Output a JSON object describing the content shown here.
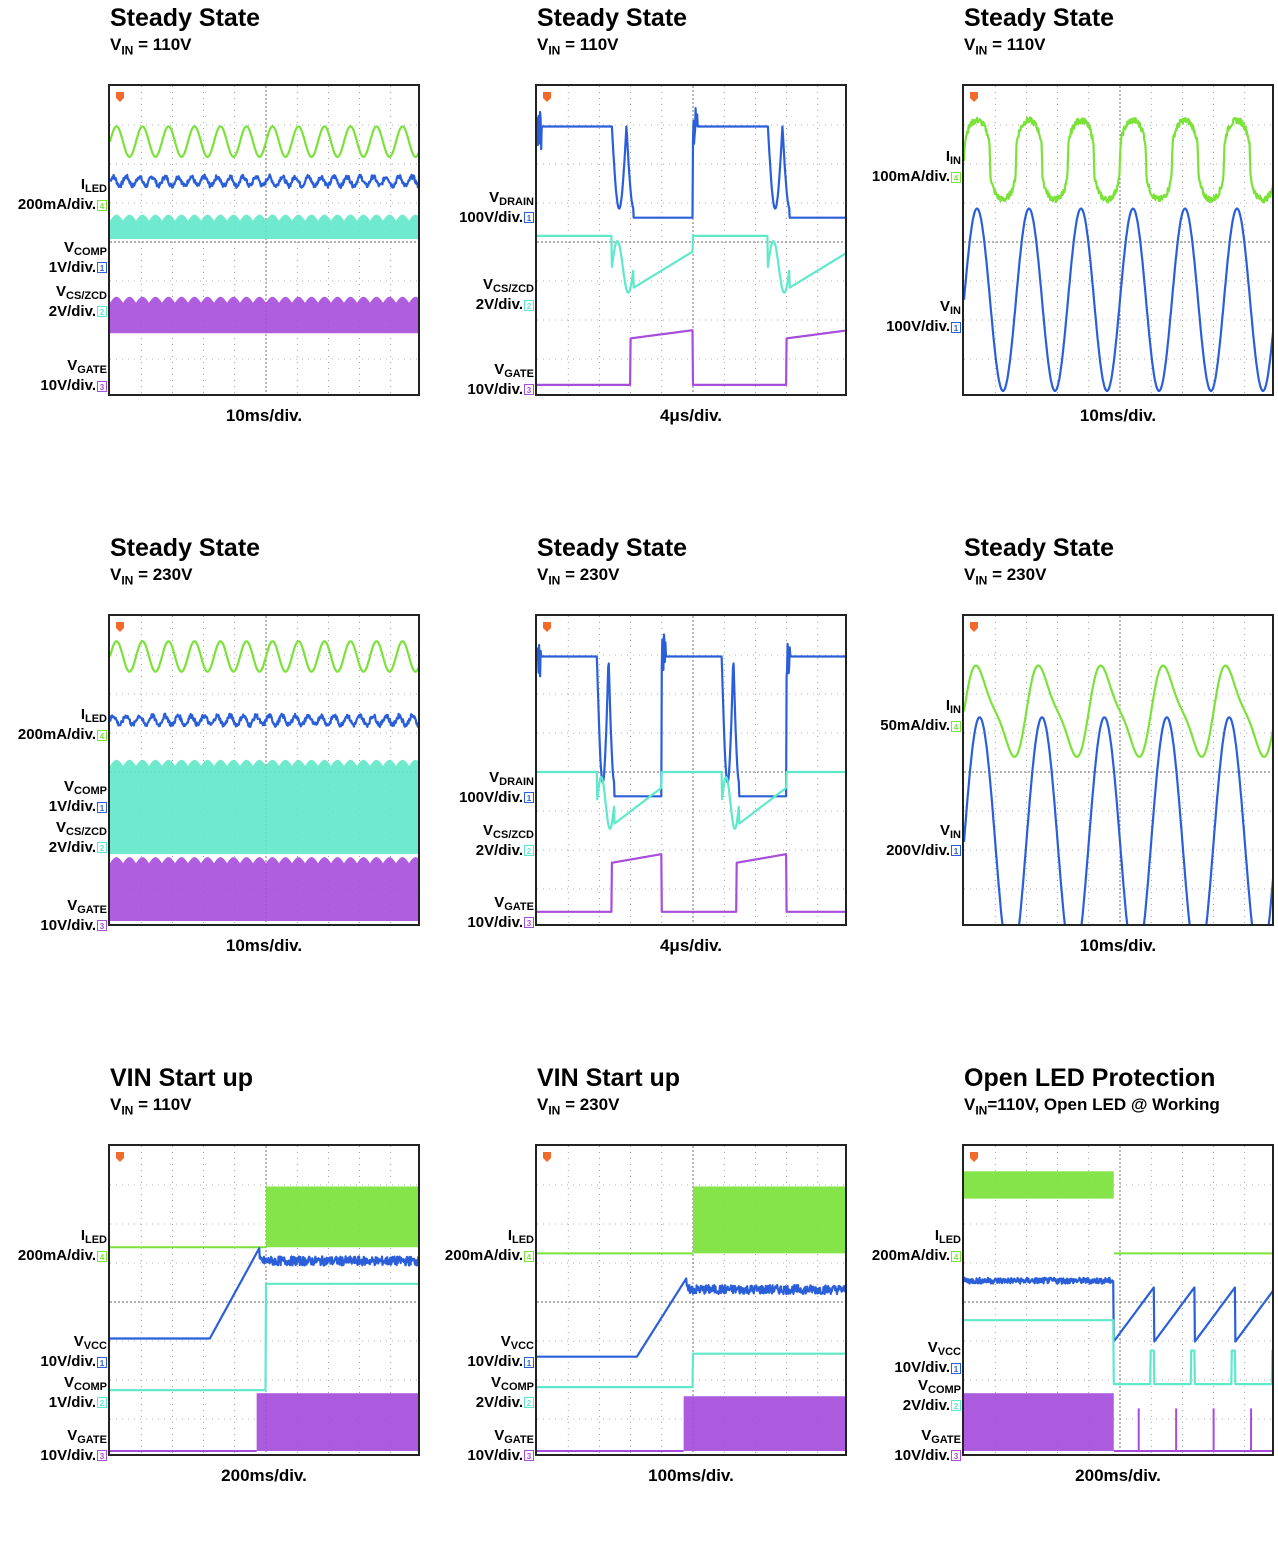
{
  "colors": {
    "ch1": "#2b5fd9",
    "ch2": "#5fe8c9",
    "ch3": "#a64ddb",
    "ch4": "#7be23a",
    "trigger": "#f26a2a"
  },
  "panels": [
    {
      "title": "Steady State",
      "sub_sym": "V",
      "sub_sub": "IN",
      "sub_rest": " = 110V",
      "timebase": "10ms/div.",
      "traces": [
        {
          "channel": "ch4",
          "shape": "sine",
          "level": 0.83,
          "amp": 0.05,
          "cycles": 12
        },
        {
          "channel": "ch1",
          "shape": "ripple",
          "level": 0.7,
          "amp": 0.015,
          "cycles": 24
        },
        {
          "channel": "ch2",
          "shape": "band",
          "level": 0.51,
          "top": 0.57,
          "cycles": 24
        },
        {
          "channel": "ch3",
          "shape": "band",
          "level": 0.2,
          "top": 0.3,
          "cycles": 24
        }
      ],
      "labels": [
        {
          "sym": "I",
          "sub": "LED",
          "scale": "200mA/div.",
          "marker": "4",
          "mcolor": "ch4",
          "y": 0.63
        },
        {
          "sym": "V",
          "sub": "COMP",
          "scale": "1V/div.",
          "marker": "1",
          "mcolor": "ch1",
          "y": 0.43
        },
        {
          "sym": "V",
          "sub": "CS/ZCD",
          "scale": "2V/div.",
          "marker": "2",
          "mcolor": "ch2",
          "y": 0.29
        },
        {
          "sym": "V",
          "sub": "GATE",
          "scale": "10V/div.",
          "marker": "3",
          "mcolor": "ch3",
          "y": 0.05
        }
      ]
    },
    {
      "title": "Steady State",
      "sub_sym": "V",
      "sub_sub": "IN",
      "sub_rest": " = 110V",
      "timebase": "4μs/div.",
      "traces": [
        {
          "channel": "ch1",
          "shape": "drain",
          "level": 0.58,
          "amp": 0.3,
          "cycles": 2
        },
        {
          "channel": "ch2",
          "shape": "cs",
          "level": 0.52,
          "amp": 0.17,
          "cycles": 2
        },
        {
          "channel": "ch3",
          "shape": "gate",
          "level": 0.03,
          "amp": 0.18,
          "cycles": 2
        }
      ],
      "labels": [
        {
          "sym": "V",
          "sub": "DRAIN",
          "scale": "100V/div.",
          "marker": "1",
          "mcolor": "ch1",
          "y": 0.59
        },
        {
          "sym": "V",
          "sub": "CS/ZCD",
          "scale": "2V/div.",
          "marker": "2",
          "mcolor": "ch2",
          "y": 0.31
        },
        {
          "sym": "V",
          "sub": "GATE",
          "scale": "10V/div.",
          "marker": "3",
          "mcolor": "ch3",
          "y": 0.04
        }
      ]
    },
    {
      "title": "Steady State",
      "sub_sym": "V",
      "sub_sub": "IN",
      "sub_rest": " = 110V",
      "timebase": "10ms/div.",
      "traces": [
        {
          "channel": "ch4",
          "shape": "square_sine",
          "level": 0.77,
          "amp": 0.13,
          "cycles": 6
        },
        {
          "channel": "ch1",
          "shape": "sine",
          "level": 0.31,
          "amp": 0.3,
          "cycles": 6
        }
      ],
      "labels": [
        {
          "sym": "I",
          "sub": "IN",
          "scale": "100mA/div.",
          "marker": "4",
          "mcolor": "ch4",
          "y": 0.72
        },
        {
          "sym": "V",
          "sub": "IN",
          "scale": "100V/div.",
          "marker": "1",
          "mcolor": "ch1",
          "y": 0.24
        }
      ]
    },
    {
      "title": "Steady State",
      "sub_sym": "V",
      "sub_sub": "IN",
      "sub_rest": " = 230V",
      "timebase": "10ms/div.",
      "traces": [
        {
          "channel": "ch4",
          "shape": "sine",
          "level": 0.88,
          "amp": 0.05,
          "cycles": 12
        },
        {
          "channel": "ch1",
          "shape": "ripple",
          "level": 0.67,
          "amp": 0.015,
          "cycles": 24
        },
        {
          "channel": "ch2",
          "shape": "band",
          "level": 0.23,
          "top": 0.52,
          "cycles": 24
        },
        {
          "channel": "ch3",
          "shape": "band",
          "level": 0.01,
          "top": 0.2,
          "cycles": 24
        }
      ],
      "labels": [
        {
          "sym": "I",
          "sub": "LED",
          "scale": "200mA/div.",
          "marker": "4",
          "mcolor": "ch4",
          "y": 0.63
        },
        {
          "sym": "V",
          "sub": "COMP",
          "scale": "1V/div.",
          "marker": "1",
          "mcolor": "ch1",
          "y": 0.4
        },
        {
          "sym": "V",
          "sub": "CS/ZCD",
          "scale": "2V/div.",
          "marker": "2",
          "mcolor": "ch2",
          "y": 0.27
        },
        {
          "sym": "V",
          "sub": "GATE",
          "scale": "10V/div.",
          "marker": "3",
          "mcolor": "ch3",
          "y": 0.02
        }
      ]
    },
    {
      "title": "Steady State",
      "sub_sym": "V",
      "sub_sub": "IN",
      "sub_rest": " = 230V",
      "timebase": "4μs/div.",
      "traces": [
        {
          "channel": "ch1",
          "shape": "drain",
          "level": 0.42,
          "amp": 0.46,
          "cycles": 2.5
        },
        {
          "channel": "ch2",
          "shape": "cs",
          "level": 0.5,
          "amp": 0.17,
          "cycles": 2.5
        },
        {
          "channel": "ch3",
          "shape": "gate",
          "level": 0.04,
          "amp": 0.19,
          "cycles": 2.5
        }
      ],
      "labels": [
        {
          "sym": "V",
          "sub": "DRAIN",
          "scale": "100V/div.",
          "marker": "1",
          "mcolor": "ch1",
          "y": 0.43
        },
        {
          "sym": "V",
          "sub": "CS/ZCD",
          "scale": "2V/div.",
          "marker": "2",
          "mcolor": "ch2",
          "y": 0.26
        },
        {
          "sym": "V",
          "sub": "GATE",
          "scale": "10V/div.",
          "marker": "3",
          "mcolor": "ch3",
          "y": 0.03
        }
      ]
    },
    {
      "title": "Steady State",
      "sub_sym": "V",
      "sub_sub": "IN",
      "sub_rest": " = 230V",
      "timebase": "10ms/div.",
      "traces": [
        {
          "channel": "ch4",
          "shape": "triangle_sine",
          "level": 0.7,
          "amp": 0.15,
          "cycles": 5
        },
        {
          "channel": "ch1",
          "shape": "sine",
          "level": 0.27,
          "amp": 0.41,
          "cycles": 5
        }
      ],
      "labels": [
        {
          "sym": "I",
          "sub": "IN",
          "scale": "50mA/div.",
          "marker": "4",
          "mcolor": "ch4",
          "y": 0.66
        },
        {
          "sym": "V",
          "sub": "IN",
          "scale": "200V/div.",
          "marker": "1",
          "mcolor": "ch1",
          "y": 0.26
        }
      ]
    },
    {
      "title": "VIN Start up",
      "sub_sym": "V",
      "sub_sub": "IN",
      "sub_rest": " = 110V",
      "timebase": "200ms/div.",
      "traces": [
        {
          "channel": "ch4",
          "shape": "startup_iled",
          "level": 0.68,
          "top": 0.88,
          "cycles": 48
        },
        {
          "channel": "ch1",
          "shape": "startup_vcc",
          "level": 0.38,
          "amp": 0.3,
          "cycles": 1
        },
        {
          "channel": "ch2",
          "shape": "step",
          "level": 0.21,
          "amp": 0.35,
          "cycles": 1
        },
        {
          "channel": "ch3",
          "shape": "startup_gate",
          "level": 0.01,
          "top": 0.2,
          "cycles": 30
        }
      ],
      "labels": [
        {
          "sym": "I",
          "sub": "LED",
          "scale": "200mA/div.",
          "marker": "4",
          "mcolor": "ch4",
          "y": 0.66
        },
        {
          "sym": "V",
          "sub": "VCC",
          "scale": "10V/div.",
          "marker": "1",
          "mcolor": "ch1",
          "y": 0.32
        },
        {
          "sym": "V",
          "sub": "COMP",
          "scale": "1V/div.",
          "marker": "2",
          "mcolor": "ch2",
          "y": 0.19
        },
        {
          "sym": "V",
          "sub": "GATE",
          "scale": "10V/div.",
          "marker": "3",
          "mcolor": "ch3",
          "y": 0.02
        }
      ]
    },
    {
      "title": "VIN Start up",
      "sub_sym": "V",
      "sub_sub": "IN",
      "sub_rest": " = 230V",
      "timebase": "100ms/div.",
      "traces": [
        {
          "channel": "ch4",
          "shape": "startup_iled",
          "level": 0.66,
          "top": 0.88,
          "cycles": 36
        },
        {
          "channel": "ch1",
          "shape": "startup_vcc",
          "level": 0.32,
          "amp": 0.26,
          "cycles": 1
        },
        {
          "channel": "ch2",
          "shape": "step",
          "level": 0.22,
          "amp": 0.11,
          "cycles": 1
        },
        {
          "channel": "ch3",
          "shape": "startup_gate",
          "level": 0.01,
          "top": 0.19,
          "cycles": 30
        }
      ],
      "labels": [
        {
          "sym": "I",
          "sub": "LED",
          "scale": "200mA/div.",
          "marker": "4",
          "mcolor": "ch4",
          "y": 0.66
        },
        {
          "sym": "V",
          "sub": "VCC",
          "scale": "10V/div.",
          "marker": "1",
          "mcolor": "ch1",
          "y": 0.32
        },
        {
          "sym": "V",
          "sub": "COMP",
          "scale": "2V/div.",
          "marker": "2",
          "mcolor": "ch2",
          "y": 0.19
        },
        {
          "sym": "V",
          "sub": "GATE",
          "scale": "10V/div.",
          "marker": "3",
          "mcolor": "ch3",
          "y": 0.02
        }
      ]
    },
    {
      "title": "Open LED Protection",
      "sub_sym": "V",
      "sub_sub": "IN",
      "sub_rest": "=110V, Open LED @ Working",
      "timebase": "200ms/div.",
      "traces": [
        {
          "channel": "ch4",
          "shape": "open_iled",
          "level": 0.66,
          "top": 0.93,
          "cycles": 40
        },
        {
          "channel": "ch1",
          "shape": "open_vcc",
          "level": 0.57,
          "amp": 0.18,
          "cycles": 4
        },
        {
          "channel": "ch2",
          "shape": "open_comp",
          "level": 0.23,
          "amp": 0.11,
          "cycles": 4
        },
        {
          "channel": "ch3",
          "shape": "open_gate",
          "level": 0.01,
          "top": 0.2,
          "cycles": 4
        }
      ],
      "labels": [
        {
          "sym": "I",
          "sub": "LED",
          "scale": "200mA/div.",
          "marker": "4",
          "mcolor": "ch4",
          "y": 0.66
        },
        {
          "sym": "V",
          "sub": "VCC",
          "scale": "10V/div.",
          "marker": "1",
          "mcolor": "ch1",
          "y": 0.3
        },
        {
          "sym": "V",
          "sub": "COMP",
          "scale": "2V/div.",
          "marker": "2",
          "mcolor": "ch2",
          "y": 0.18
        },
        {
          "sym": "V",
          "sub": "GATE",
          "scale": "10V/div.",
          "marker": "3",
          "mcolor": "ch3",
          "y": 0.02
        }
      ]
    }
  ]
}
